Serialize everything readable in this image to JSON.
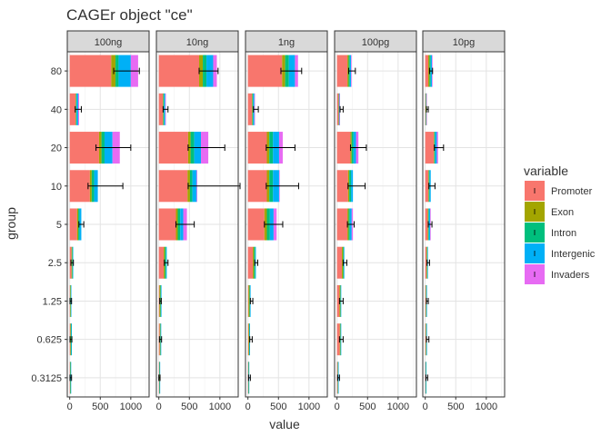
{
  "chart_data": {
    "type": "bar",
    "orientation": "horizontal",
    "stacked": true,
    "title": "CAGEr object \"ce\"",
    "xlabel": "value",
    "ylabel": "group",
    "xlim": [
      -40,
      1300
    ],
    "xticks": [
      0,
      500,
      1000
    ],
    "xtick_labels": [
      "0",
      "500",
      "1000"
    ],
    "grid": true,
    "legend": {
      "title": "variable",
      "position": "right"
    },
    "categories": [
      "80",
      "40",
      "20",
      "10",
      "5",
      "2.5",
      "1.25",
      "0.625",
      "0.3125"
    ],
    "series_names": [
      "Promoter",
      "Exon",
      "Intron",
      "Intergenic",
      "Invaders"
    ],
    "colors": [
      "#F8766D",
      "#A3A500",
      "#00BF7D",
      "#00B0F6",
      "#E76BF3"
    ],
    "panels": [
      {
        "label": "100ng",
        "series": [
          {
            "name": "Promoter",
            "values": [
              680,
              95,
              480,
              330,
              120,
              30,
              5,
              10,
              5
            ]
          },
          {
            "name": "Exon",
            "values": [
              70,
              10,
              40,
              30,
              20,
              10,
              10,
              8,
              5
            ]
          },
          {
            "name": "Intron",
            "values": [
              50,
              8,
              50,
              40,
              20,
              8,
              3,
              8,
              5
            ]
          },
          {
            "name": "Intergenic",
            "values": [
              200,
              25,
              130,
              60,
              30,
              5,
              2,
              5,
              4
            ]
          },
          {
            "name": "Invaders",
            "values": [
              120,
              15,
              120,
              0,
              0,
              0,
              0,
              0,
              0
            ]
          }
        ],
        "error_bars": [
          [
            720,
            1140
          ],
          [
            90,
            190
          ],
          [
            430,
            1000
          ],
          [
            300,
            870
          ],
          [
            150,
            230
          ],
          [
            20,
            60
          ],
          [
            5,
            30
          ],
          [
            5,
            35
          ],
          [
            5,
            30
          ]
        ]
      },
      {
        "label": "10ng",
        "series": [
          {
            "name": "Promoter",
            "values": [
              660,
              65,
              480,
              470,
              280,
              80,
              10,
              15,
              5
            ]
          },
          {
            "name": "Exon",
            "values": [
              60,
              10,
              40,
              40,
              30,
              20,
              15,
              10,
              5
            ]
          },
          {
            "name": "Intron",
            "values": [
              60,
              10,
              60,
              40,
              40,
              20,
              10,
              5,
              3
            ]
          },
          {
            "name": "Intergenic",
            "values": [
              110,
              20,
              110,
              70,
              50,
              10,
              5,
              4,
              3
            ]
          },
          {
            "name": "Invaders",
            "values": [
              60,
              10,
              120,
              10,
              60,
              0,
              0,
              0,
              0
            ]
          }
        ],
        "error_bars": [
          [
            660,
            970
          ],
          [
            70,
            150
          ],
          [
            480,
            1080
          ],
          [
            480,
            1330
          ],
          [
            280,
            580
          ],
          [
            90,
            150
          ],
          [
            15,
            40
          ],
          [
            10,
            45
          ],
          [
            0,
            20
          ]
        ]
      },
      {
        "label": "1ng",
        "series": [
          {
            "name": "Promoter",
            "values": [
              560,
              65,
              310,
              310,
              270,
              80,
              10,
              10,
              5
            ]
          },
          {
            "name": "Exon",
            "values": [
              50,
              10,
              40,
              40,
              40,
              20,
              15,
              10,
              5
            ]
          },
          {
            "name": "Intron",
            "values": [
              60,
              10,
              60,
              60,
              50,
              20,
              10,
              5,
              3
            ]
          },
          {
            "name": "Intergenic",
            "values": [
              100,
              20,
              100,
              100,
              60,
              10,
              5,
              5,
              3
            ]
          },
          {
            "name": "Invaders",
            "values": [
              50,
              10,
              60,
              10,
              50,
              0,
              0,
              0,
              0
            ]
          }
        ],
        "error_bars": [
          [
            540,
            880
          ],
          [
            90,
            170
          ],
          [
            300,
            770
          ],
          [
            300,
            830
          ],
          [
            270,
            570
          ],
          [
            110,
            160
          ],
          [
            40,
            80
          ],
          [
            30,
            70
          ],
          [
            10,
            40
          ]
        ]
      },
      {
        "label": "100pg",
        "series": [
          {
            "name": "Promoter",
            "values": [
              170,
              25,
              220,
              180,
              170,
              80,
              40,
              45,
              10
            ]
          },
          {
            "name": "Exon",
            "values": [
              20,
              5,
              20,
              20,
              20,
              20,
              15,
              10,
              5
            ]
          },
          {
            "name": "Intron",
            "values": [
              20,
              5,
              30,
              30,
              20,
              10,
              5,
              5,
              3
            ]
          },
          {
            "name": "Intergenic",
            "values": [
              20,
              5,
              40,
              30,
              30,
              10,
              5,
              3,
              3
            ]
          },
          {
            "name": "Invaders",
            "values": [
              10,
              5,
              40,
              0,
              20,
              0,
              0,
              0,
              0
            ]
          }
        ],
        "error_bars": [
          [
            190,
            300
          ],
          [
            50,
            100
          ],
          [
            220,
            480
          ],
          [
            180,
            460
          ],
          [
            170,
            280
          ],
          [
            100,
            160
          ],
          [
            40,
            100
          ],
          [
            40,
            100
          ],
          [
            10,
            40
          ]
        ]
      },
      {
        "label": "10pg",
        "series": [
          {
            "name": "Promoter",
            "values": [
              50,
              5,
              140,
              50,
              40,
              20,
              10,
              10,
              5
            ]
          },
          {
            "name": "Exon",
            "values": [
              20,
              5,
              10,
              10,
              10,
              10,
              5,
              5,
              3
            ]
          },
          {
            "name": "Intron",
            "values": [
              20,
              5,
              10,
              10,
              10,
              5,
              5,
              5,
              3
            ]
          },
          {
            "name": "Intergenic",
            "values": [
              20,
              3,
              30,
              20,
              20,
              5,
              3,
              3,
              3
            ]
          },
          {
            "name": "Invaders",
            "values": [
              10,
              3,
              20,
              0,
              10,
              0,
              0,
              0,
              0
            ]
          }
        ],
        "error_bars": [
          [
            70,
            120
          ],
          [
            20,
            50
          ],
          [
            150,
            300
          ],
          [
            60,
            160
          ],
          [
            50,
            110
          ],
          [
            30,
            70
          ],
          [
            20,
            50
          ],
          [
            20,
            60
          ],
          [
            10,
            40
          ]
        ]
      }
    ]
  }
}
